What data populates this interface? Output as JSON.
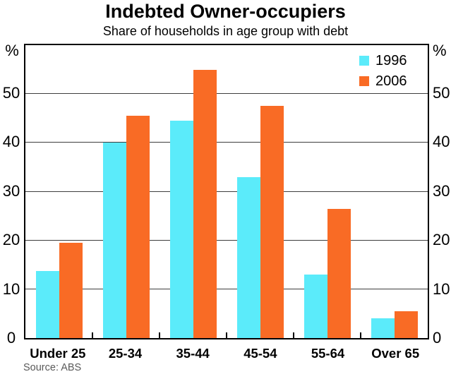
{
  "chart_data": {
    "type": "bar",
    "title": "Indebted Owner-occupiers",
    "subtitle": "Share of households in age group with debt",
    "unit_label": "%",
    "categories": [
      "Under 25",
      "25-34",
      "35-44",
      "45-54",
      "55-64",
      "Over 65"
    ],
    "series": [
      {
        "name": "1996",
        "color": "#5BEBFA",
        "values": [
          13.7,
          40,
          44.5,
          33,
          13,
          4
        ]
      },
      {
        "name": "2006",
        "color": "#F96B25",
        "values": [
          19.5,
          45.5,
          55,
          47.5,
          26.5,
          5.5
        ]
      }
    ],
    "ylim": [
      0,
      60
    ],
    "yticks": [
      0,
      10,
      20,
      30,
      40,
      50
    ],
    "grid": "horizontal",
    "legend_position": "top-right",
    "source": "Source: ABS"
  }
}
